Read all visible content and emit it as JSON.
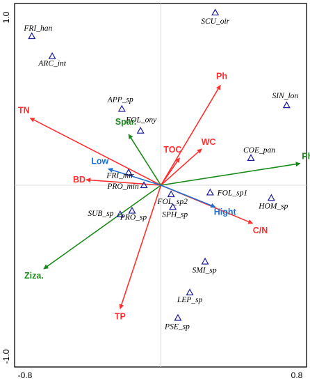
{
  "chart_data": {
    "type": "scatter",
    "title": "",
    "xlabel": "",
    "ylabel": "",
    "xlim": [
      -0.8,
      0.8
    ],
    "ylim": [
      -1.0,
      1.0
    ],
    "x_tick_labels": [
      "-0.8",
      "0.8"
    ],
    "y_tick_labels": [
      "1.0",
      "-1.0"
    ],
    "reference_lines": {
      "x0": true,
      "y0": true
    },
    "colors": {
      "environmental": "#ff2f2f",
      "plant": "#1a8a1a",
      "other": "#1f6fd1",
      "species_marker": "#1a1a9a",
      "frame": "#000000",
      "origin_lines": "#d8d8d8"
    },
    "species": [
      {
        "label": "SCU_oir",
        "x": 0.32,
        "y": 0.95
      },
      {
        "label": "FRI_han",
        "x": -0.76,
        "y": 0.82
      },
      {
        "label": "ARC_int",
        "x": -0.64,
        "y": 0.71
      },
      {
        "label": "SIN_lon",
        "x": 0.74,
        "y": 0.44
      },
      {
        "label": "APP_sp",
        "x": -0.23,
        "y": 0.42
      },
      {
        "label": "FOL_ony",
        "x": -0.12,
        "y": 0.3
      },
      {
        "label": "COE_pan",
        "x": 0.53,
        "y": 0.15
      },
      {
        "label": "FRI_mir",
        "x": -0.19,
        "y": 0.07
      },
      {
        "label": "PRO_min",
        "x": -0.1,
        "y": 0.0
      },
      {
        "label": "FOL_sp1",
        "x": 0.29,
        "y": -0.04
      },
      {
        "label": "HOM_sp",
        "x": 0.65,
        "y": -0.07
      },
      {
        "label": "FOL_sp2",
        "x": 0.06,
        "y": -0.05
      },
      {
        "label": "SUB_sp",
        "x": -0.24,
        "y": -0.16
      },
      {
        "label": "PRO_sp",
        "x": -0.17,
        "y": -0.14
      },
      {
        "label": "SPH_sp",
        "x": 0.07,
        "y": -0.12
      },
      {
        "label": "SMI_sp",
        "x": 0.26,
        "y": -0.42
      },
      {
        "label": "LEP_sp",
        "x": 0.17,
        "y": -0.59
      },
      {
        "label": "PSE_sp",
        "x": 0.1,
        "y": -0.73
      }
    ],
    "vectors": [
      {
        "label": "Ph",
        "x": 0.35,
        "y": 0.55,
        "group": "environmental"
      },
      {
        "label": "TN",
        "x": -0.77,
        "y": 0.37,
        "group": "environmental"
      },
      {
        "label": "WC",
        "x": 0.24,
        "y": 0.2,
        "group": "environmental"
      },
      {
        "label": "TOC",
        "x": 0.11,
        "y": 0.15,
        "group": "environmental"
      },
      {
        "label": "BD",
        "x": -0.44,
        "y": 0.03,
        "group": "environmental"
      },
      {
        "label": "C/N",
        "x": 0.54,
        "y": -0.21,
        "group": "environmental"
      },
      {
        "label": "TP",
        "x": -0.24,
        "y": -0.68,
        "group": "environmental"
      },
      {
        "label": "Spar.",
        "x": -0.19,
        "y": 0.28,
        "group": "plant"
      },
      {
        "label": "Phra.",
        "x": 0.82,
        "y": 0.12,
        "group": "plant"
      },
      {
        "label": "Ziza.",
        "x": -0.69,
        "y": -0.46,
        "group": "plant"
      },
      {
        "label": "Low",
        "x": -0.31,
        "y": 0.09,
        "group": "other"
      },
      {
        "label": "Hight",
        "x": 0.32,
        "y": -0.12,
        "group": "other"
      }
    ]
  }
}
